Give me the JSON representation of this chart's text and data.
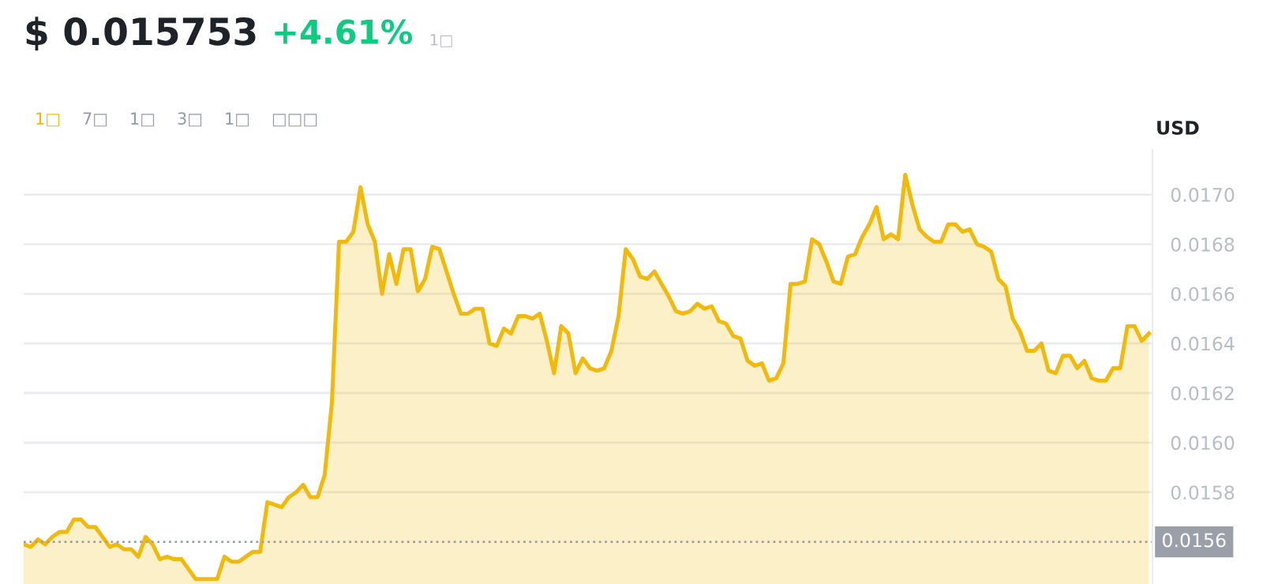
{
  "chart_data": {
    "type": "area",
    "title": "$ 0.015753",
    "subtitle": "+4.61%",
    "ylabel": "USD",
    "annotations": [
      "1□",
      "1□",
      "7□",
      "1□",
      "3□",
      "1□",
      "□□□"
    ],
    "series": [
      {
        "color": "#f0b90b",
        "values": [
          0.01559,
          0.01558,
          0.01561,
          0.01559,
          0.01562,
          0.01564,
          0.01564,
          0.01569,
          0.01569,
          0.01566,
          0.01566,
          0.01562,
          0.01558,
          0.01559,
          0.01557,
          0.01557,
          0.01554,
          0.01562,
          0.01559,
          0.01553,
          0.01554,
          0.01553,
          0.01553,
          0.01549,
          0.01545,
          0.01545,
          0.01545,
          0.01545,
          0.01554,
          0.01552,
          0.01552,
          0.01554,
          0.01556,
          0.01556,
          0.01576,
          0.01575,
          0.01574,
          0.01578,
          0.0158,
          0.01583,
          0.01578,
          0.01578,
          0.01587,
          0.01616,
          0.01681,
          0.01681,
          0.01685,
          0.01703,
          0.01688,
          0.01681,
          0.0166,
          0.01676,
          0.01664,
          0.01678,
          0.01678,
          0.01661,
          0.01666,
          0.01679,
          0.01678,
          0.01669,
          0.0166,
          0.01652,
          0.01652,
          0.01654,
          0.01654,
          0.0164,
          0.01639,
          0.01646,
          0.01644,
          0.01651,
          0.01651,
          0.0165,
          0.01652,
          0.01641,
          0.01628,
          0.01647,
          0.01644,
          0.01628,
          0.01634,
          0.0163,
          0.01629,
          0.0163,
          0.01637,
          0.01651,
          0.01678,
          0.01674,
          0.01667,
          0.01666,
          0.01669,
          0.01664,
          0.01659,
          0.01653,
          0.01652,
          0.01653,
          0.01656,
          0.01654,
          0.01655,
          0.01649,
          0.01648,
          0.01643,
          0.01642,
          0.01633,
          0.01631,
          0.01632,
          0.01625,
          0.01626,
          0.01632,
          0.01664,
          0.01664,
          0.01665,
          0.01682,
          0.0168,
          0.01673,
          0.01665,
          0.01664,
          0.01675,
          0.01676,
          0.01683,
          0.01688,
          0.01695,
          0.01682,
          0.01684,
          0.01682,
          0.01708,
          0.01696,
          0.01686,
          0.01683,
          0.01681,
          0.01681,
          0.01688,
          0.01688,
          0.01685,
          0.01686,
          0.0168,
          0.01679,
          0.01677,
          0.01666,
          0.01663,
          0.0165,
          0.01645,
          0.01637,
          0.01637,
          0.0164,
          0.01629,
          0.01628,
          0.01635,
          0.01635,
          0.0163,
          0.01633,
          0.01626,
          0.01625,
          0.01625,
          0.0163,
          0.0163,
          0.01647,
          0.01647,
          0.01641,
          0.01644
        ]
      }
    ],
    "categories": [
      null,
      null,
      null,
      null,
      null,
      null,
      null,
      null,
      null,
      null,
      null,
      null,
      null,
      null,
      null,
      null,
      null,
      null,
      null,
      null,
      null,
      null,
      null,
      null,
      null,
      null,
      null,
      null,
      null,
      null,
      null,
      null,
      null,
      null,
      null,
      null,
      null,
      null,
      null,
      null,
      null,
      null,
      null,
      null,
      null,
      null,
      null,
      null,
      null,
      null,
      null,
      null,
      null,
      null,
      null,
      null,
      null,
      null,
      null,
      null,
      null,
      null,
      null,
      null,
      null,
      null,
      null,
      null,
      null,
      null,
      null,
      null,
      null,
      null,
      null,
      null,
      null,
      null,
      null,
      null,
      null,
      null,
      null,
      null,
      null,
      null,
      null,
      null,
      null,
      null,
      null,
      null,
      null,
      null,
      null,
      null,
      null,
      null,
      null,
      null,
      null,
      null,
      null,
      null,
      null,
      null,
      null,
      null,
      null,
      null,
      null,
      null,
      null,
      null,
      null,
      null,
      null,
      null,
      null,
      null,
      null,
      null,
      null,
      null,
      null,
      null,
      null,
      null,
      null,
      null,
      null,
      null,
      null,
      null,
      null,
      null,
      null,
      null,
      null,
      null,
      null,
      null,
      null,
      null,
      null,
      null,
      null,
      null,
      null,
      null,
      null,
      null,
      null,
      null,
      null,
      null,
      null,
      null
    ],
    "ylim": [
      0.01543,
      0.01718
    ],
    "yticks": [
      {
        "value": 0.0158,
        "label": "0.0158"
      },
      {
        "value": 0.016,
        "label": "0.0160"
      },
      {
        "value": 0.0162,
        "label": "0.0162"
      },
      {
        "value": 0.0164,
        "label": "0.0164"
      },
      {
        "value": 0.0166,
        "label": "0.0166"
      },
      {
        "value": 0.0168,
        "label": "0.0168"
      },
      {
        "value": 0.017,
        "label": "0.0170"
      }
    ],
    "tick_labels": "y",
    "grid": "y",
    "legend": false,
    "ref_lines": [
      {
        "axis": "y",
        "value": 0.0156,
        "label": "0.0156",
        "color": "#9aa0aa",
        "line_style": "dotted"
      }
    ]
  }
}
